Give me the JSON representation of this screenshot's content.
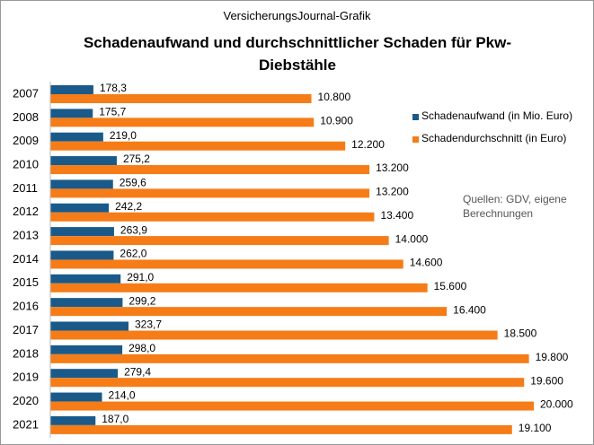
{
  "chart_data": {
    "type": "bar",
    "orientation": "horizontal",
    "subtitle": "VersicherungsJournal-Grafik",
    "title": "Schadenaufwand  und durchschnittlicher Schaden für Pkw-Diebstähle",
    "source": "Quellen: GDV, eigene Berechnungen",
    "categories": [
      "2007",
      "2008",
      "2009",
      "2010",
      "2011",
      "2012",
      "2013",
      "2014",
      "2015",
      "2016",
      "2017",
      "2018",
      "2019",
      "2020",
      "2021"
    ],
    "series": [
      {
        "name": "Schadenaufwand (in Mio. Euro)",
        "color": "#1a5a8a",
        "values": [
          178.3,
          175.7,
          219.0,
          275.2,
          259.6,
          242.2,
          263.9,
          262.0,
          291.0,
          299.2,
          323.7,
          298.0,
          279.4,
          214.0,
          187.0
        ],
        "value_labels": [
          "178,3",
          "175,7",
          "219,0",
          "275,2",
          "259,6",
          "242,2",
          "263,9",
          "262,0",
          "291,0",
          "299,2",
          "323,7",
          "298,0",
          "279,4",
          "214,0",
          "187,0"
        ]
      },
      {
        "name": "Schadendurchschnitt (in Euro)",
        "color": "#f57c17",
        "values": [
          10800,
          10900,
          12200,
          13200,
          13200,
          13400,
          14000,
          14600,
          15600,
          16400,
          18500,
          19800,
          19600,
          20000,
          19100
        ],
        "value_labels": [
          "10.800",
          "10.900",
          "12.200",
          "13.200",
          "13.200",
          "13.400",
          "14.000",
          "14.600",
          "15.600",
          "16.400",
          "18.500",
          "19.800",
          "19.600",
          "20.000",
          "19.100"
        ]
      }
    ]
  }
}
